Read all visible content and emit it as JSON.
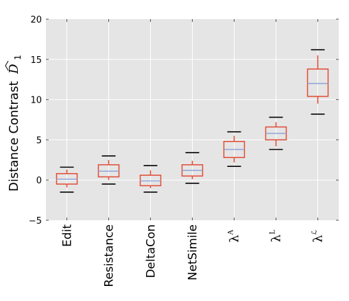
{
  "chart_data": {
    "type": "box",
    "ylabel": "Distance Contrast",
    "ylabel_symbol": "D",
    "ylabel_subscript": "1",
    "ylim": [
      -5,
      20
    ],
    "yticks": [
      -5,
      0,
      5,
      10,
      15,
      20
    ],
    "ytick_labels": [
      "−5",
      "0",
      "5",
      "10",
      "15",
      "20"
    ],
    "grid": true,
    "categories": [
      {
        "label": "Edit"
      },
      {
        "label": "Resistance"
      },
      {
        "label": "DeltaCon"
      },
      {
        "label": "NetSimile"
      },
      {
        "label": "λ",
        "sup": "A"
      },
      {
        "label": "λ",
        "sup": "L"
      },
      {
        "label": "λ",
        "sup": "ℒ"
      }
    ],
    "boxes": [
      {
        "whisker_low": -0.9,
        "q1": -0.5,
        "median": 0.1,
        "q3": 0.8,
        "whisker_high": 1.3,
        "cap_low": -1.5,
        "cap_high": 1.6
      },
      {
        "whisker_low": 0.0,
        "q1": 0.4,
        "median": 1.1,
        "q3": 1.9,
        "whisker_high": 2.5,
        "cap_low": -0.5,
        "cap_high": 3.0
      },
      {
        "whisker_low": -1.0,
        "q1": -0.7,
        "median": -0.1,
        "q3": 0.6,
        "whisker_high": 1.2,
        "cap_low": -1.5,
        "cap_high": 1.8
      },
      {
        "whisker_low": 0.1,
        "q1": 0.5,
        "median": 1.2,
        "q3": 1.9,
        "whisker_high": 2.4,
        "cap_low": -0.4,
        "cap_high": 3.4
      },
      {
        "whisker_low": 2.2,
        "q1": 2.8,
        "median": 3.8,
        "q3": 4.8,
        "whisker_high": 5.5,
        "cap_low": 1.7,
        "cap_high": 6.0
      },
      {
        "whisker_low": 4.2,
        "q1": 5.0,
        "median": 5.8,
        "q3": 6.6,
        "whisker_high": 7.2,
        "cap_low": 3.8,
        "cap_high": 7.8
      },
      {
        "whisker_low": 9.5,
        "q1": 10.4,
        "median": 12.0,
        "q3": 13.8,
        "whisker_high": 15.5,
        "cap_low": 8.2,
        "cap_high": 16.2
      }
    ],
    "colors": {
      "background": "#e5e5e5",
      "grid": "#ffffff",
      "box": "#e24a33",
      "median": "#8ea4d8",
      "cap": "#000000"
    }
  }
}
